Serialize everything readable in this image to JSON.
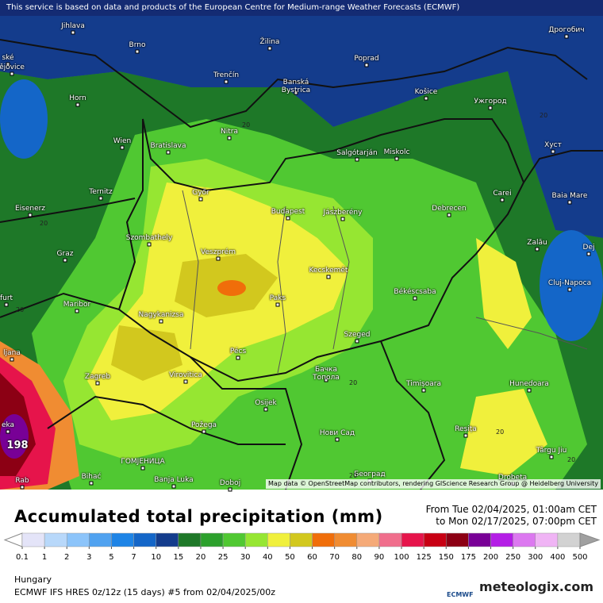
{
  "banner": "This service is based on data and products of the European Centre for Medium-range Weather Forecasts (ECMWF)",
  "attribution": "Map data © OpenStreetMap contributors, rendering GIScience Research Group @ Heidelberg University",
  "cities": [
    "Jihlava",
    "Brno",
    "Žilina",
    "Дрогобич",
    "ské",
    "ějovice",
    "Poprad",
    "Trenčín",
    "Banská Bystrica",
    "Horn",
    "Košice",
    "Ужгород",
    "Nitra",
    "Wien",
    "Bratislava",
    "Salgótarján",
    "Miskolc",
    "Хуст",
    "Ternitz",
    "Győr",
    "Carei",
    "Baia Mare",
    "Eisenerz",
    "Budapest",
    "Jászberény",
    "Debrecen",
    "Szombathely",
    "Veszprém",
    "Zalău",
    "Dej",
    "Graz",
    "Kecskemét",
    "Cluj-Napoca",
    "furt",
    "Paks",
    "Békéscsaba",
    "Maribor",
    "Nagykanizsa",
    "ljana",
    "Pécs",
    "Szeged",
    "Zagreb",
    "Virovitica",
    "Бачка Топола",
    "Timișoara",
    "Hunedoara",
    "eka",
    "Osijek",
    "Požega",
    "Нови Сад",
    "Reșița",
    "Târgu Jiu",
    "ГОМЈЕНИЦА",
    "Bihać",
    "Banja Luka",
    "Doboj",
    "Београд",
    "Drobeta",
    "Rab"
  ],
  "contour_labels": [
    "20",
    "20",
    "20",
    "20",
    "20",
    "20",
    "20",
    "20"
  ],
  "max_label": "198",
  "title": "Accumulated total precipitation (mm)",
  "period_from": "From Tue 02/04/2025, 01:00am CET",
  "period_to": "to Mon 02/17/2025, 07:00pm CET",
  "legend": {
    "levels": [
      0.1,
      1,
      2,
      3,
      5,
      7,
      10,
      15,
      20,
      25,
      30,
      40,
      50,
      60,
      70,
      80,
      90,
      100,
      125,
      150,
      175,
      200,
      250,
      300,
      400,
      500
    ],
    "colors": [
      "#e4e4f8",
      "#b8d8fa",
      "#8cc4fa",
      "#50a2f0",
      "#1e84e6",
      "#1466c8",
      "#143c8c",
      "#1e7828",
      "#2ca02c",
      "#50c832",
      "#96e632",
      "#f0f03c",
      "#d2c81e",
      "#f06e0a",
      "#f08c32",
      "#f5aa78",
      "#f06e8c",
      "#e6144b",
      "#c80014",
      "#8c0014",
      "#780096",
      "#b41ee6",
      "#dc78f0",
      "#f0b4f5",
      "#d2d2d2"
    ],
    "under_color": "#ffffff",
    "over_color": "#a0a0a0"
  },
  "region": "Hungary",
  "model": "ECMWF IFS HRES 0z/12z (15 days) #5 from  02/04/2025/00z",
  "logo_ecmwf": "ECMWF",
  "logo_brand": "meteologix.com"
}
